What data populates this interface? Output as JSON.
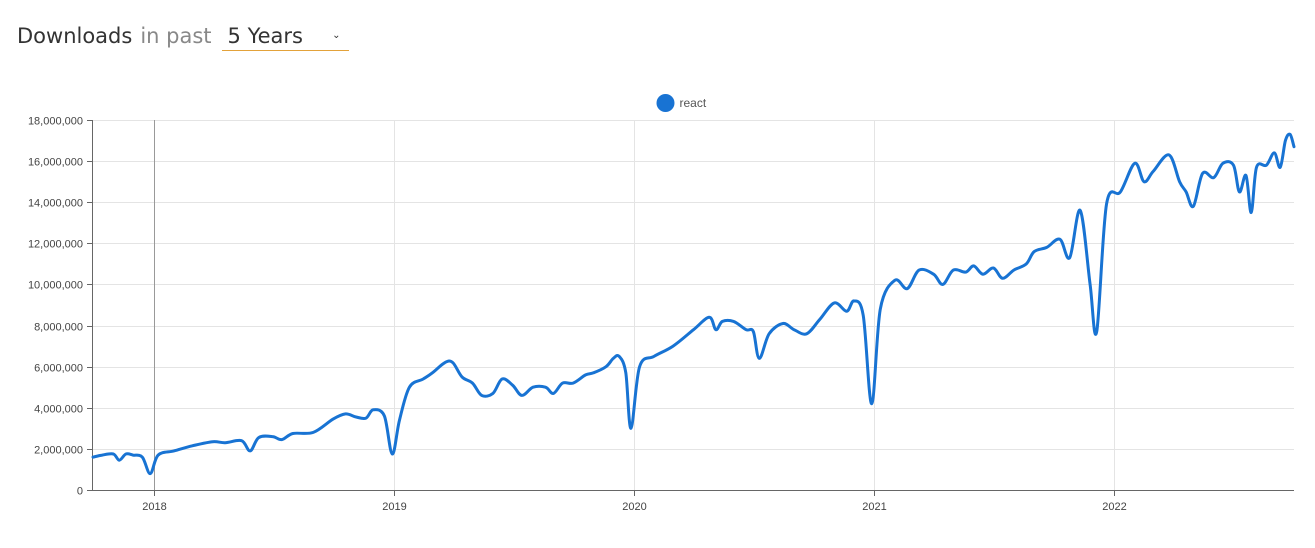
{
  "header": {
    "title": "Downloads",
    "subtitle": "in past",
    "range_selected": "5 Years",
    "caret_icon": "chevron-down-icon"
  },
  "colors": {
    "series": "#1873d3",
    "grid": "#e4e4e4",
    "axis": "#666666",
    "accent": "#e3a23a"
  },
  "chart_data": {
    "type": "line",
    "legend_position": "top-center",
    "grid": true,
    "xlim": [
      "2017-10-01",
      "2022-10-01"
    ],
    "ylim": [
      0,
      18000000
    ],
    "y_ticks": [
      0,
      2000000,
      4000000,
      6000000,
      8000000,
      10000000,
      12000000,
      14000000,
      16000000,
      18000000
    ],
    "y_tick_labels": [
      "0",
      "2,000,000",
      "4,000,000",
      "6,000,000",
      "8,000,000",
      "10,000,000",
      "12,000,000",
      "14,000,000",
      "16,000,000",
      "18,000,000"
    ],
    "x_ticks": [
      "2018-01-01",
      "2019-01-01",
      "2020-01-01",
      "2021-01-01",
      "2022-01-01"
    ],
    "x_tick_labels": [
      "2018",
      "2019",
      "2020",
      "2021",
      "2022"
    ],
    "series": [
      {
        "name": "react",
        "points": [
          [
            "2017-10-01",
            1600000
          ],
          [
            "2017-10-15",
            1700000
          ],
          [
            "2017-11-01",
            1750000
          ],
          [
            "2017-11-10",
            1450000
          ],
          [
            "2017-11-20",
            1750000
          ],
          [
            "2017-12-01",
            1700000
          ],
          [
            "2017-12-15",
            1600000
          ],
          [
            "2017-12-27",
            800000
          ],
          [
            "2018-01-08",
            1700000
          ],
          [
            "2018-02-01",
            1900000
          ],
          [
            "2018-03-01",
            2150000
          ],
          [
            "2018-04-01",
            2350000
          ],
          [
            "2018-04-20",
            2300000
          ],
          [
            "2018-05-15",
            2400000
          ],
          [
            "2018-05-28",
            1900000
          ],
          [
            "2018-06-10",
            2550000
          ],
          [
            "2018-07-01",
            2600000
          ],
          [
            "2018-07-15",
            2450000
          ],
          [
            "2018-08-01",
            2750000
          ],
          [
            "2018-09-01",
            2800000
          ],
          [
            "2018-10-01",
            3450000
          ],
          [
            "2018-10-20",
            3700000
          ],
          [
            "2018-11-05",
            3550000
          ],
          [
            "2018-11-20",
            3500000
          ],
          [
            "2018-12-01",
            3900000
          ],
          [
            "2018-12-18",
            3600000
          ],
          [
            "2018-12-30",
            1750000
          ],
          [
            "2019-01-10",
            3400000
          ],
          [
            "2019-01-25",
            5000000
          ],
          [
            "2019-02-15",
            5400000
          ],
          [
            "2019-03-01",
            5700000
          ],
          [
            "2019-03-20",
            6200000
          ],
          [
            "2019-04-01",
            6200000
          ],
          [
            "2019-04-15",
            5500000
          ],
          [
            "2019-05-01",
            5200000
          ],
          [
            "2019-05-15",
            4600000
          ],
          [
            "2019-06-01",
            4700000
          ],
          [
            "2019-06-15",
            5400000
          ],
          [
            "2019-07-01",
            5100000
          ],
          [
            "2019-07-15",
            4600000
          ],
          [
            "2019-08-01",
            5000000
          ],
          [
            "2019-08-20",
            5000000
          ],
          [
            "2019-09-01",
            4700000
          ],
          [
            "2019-09-15",
            5200000
          ],
          [
            "2019-10-01",
            5200000
          ],
          [
            "2019-10-20",
            5600000
          ],
          [
            "2019-11-01",
            5700000
          ],
          [
            "2019-11-20",
            6000000
          ],
          [
            "2019-12-01",
            6400000
          ],
          [
            "2019-12-10",
            6500000
          ],
          [
            "2019-12-20",
            5700000
          ],
          [
            "2019-12-28",
            3000000
          ],
          [
            "2020-01-10",
            6000000
          ],
          [
            "2020-02-01",
            6500000
          ],
          [
            "2020-03-01",
            7000000
          ],
          [
            "2020-04-01",
            7800000
          ],
          [
            "2020-04-25",
            8400000
          ],
          [
            "2020-05-05",
            7800000
          ],
          [
            "2020-05-15",
            8200000
          ],
          [
            "2020-06-01",
            8200000
          ],
          [
            "2020-06-20",
            7800000
          ],
          [
            "2020-07-01",
            7700000
          ],
          [
            "2020-07-10",
            6400000
          ],
          [
            "2020-07-25",
            7600000
          ],
          [
            "2020-08-15",
            8100000
          ],
          [
            "2020-09-01",
            7800000
          ],
          [
            "2020-09-20",
            7600000
          ],
          [
            "2020-10-10",
            8300000
          ],
          [
            "2020-11-01",
            9100000
          ],
          [
            "2020-11-20",
            8700000
          ],
          [
            "2020-12-01",
            9200000
          ],
          [
            "2020-12-15",
            8500000
          ],
          [
            "2020-12-28",
            4200000
          ],
          [
            "2021-01-10",
            8800000
          ],
          [
            "2021-02-01",
            10200000
          ],
          [
            "2021-02-20",
            9800000
          ],
          [
            "2021-03-10",
            10700000
          ],
          [
            "2021-04-01",
            10500000
          ],
          [
            "2021-04-15",
            10000000
          ],
          [
            "2021-05-01",
            10700000
          ],
          [
            "2021-05-20",
            10600000
          ],
          [
            "2021-06-01",
            10900000
          ],
          [
            "2021-06-15",
            10500000
          ],
          [
            "2021-07-01",
            10800000
          ],
          [
            "2021-07-15",
            10300000
          ],
          [
            "2021-08-01",
            10700000
          ],
          [
            "2021-08-20",
            11000000
          ],
          [
            "2021-09-01",
            11600000
          ],
          [
            "2021-09-20",
            11800000
          ],
          [
            "2021-10-10",
            12200000
          ],
          [
            "2021-10-25",
            11300000
          ],
          [
            "2021-11-10",
            13600000
          ],
          [
            "2021-11-25",
            10000000
          ],
          [
            "2021-12-05",
            7700000
          ],
          [
            "2021-12-20",
            13900000
          ],
          [
            "2022-01-10",
            14500000
          ],
          [
            "2022-02-01",
            15900000
          ],
          [
            "2022-02-15",
            15000000
          ],
          [
            "2022-03-01",
            15500000
          ],
          [
            "2022-03-25",
            16300000
          ],
          [
            "2022-04-10",
            15000000
          ],
          [
            "2022-04-20",
            14500000
          ],
          [
            "2022-05-01",
            13800000
          ],
          [
            "2022-05-15",
            15400000
          ],
          [
            "2022-06-01",
            15200000
          ],
          [
            "2022-06-15",
            15900000
          ],
          [
            "2022-07-01",
            15800000
          ],
          [
            "2022-07-10",
            14500000
          ],
          [
            "2022-07-20",
            15300000
          ],
          [
            "2022-07-28",
            13500000
          ],
          [
            "2022-08-05",
            15700000
          ],
          [
            "2022-08-20",
            15800000
          ],
          [
            "2022-09-01",
            16400000
          ],
          [
            "2022-09-10",
            15700000
          ],
          [
            "2022-09-18",
            17000000
          ],
          [
            "2022-09-25",
            17300000
          ],
          [
            "2022-10-01",
            16700000
          ]
        ]
      }
    ]
  }
}
